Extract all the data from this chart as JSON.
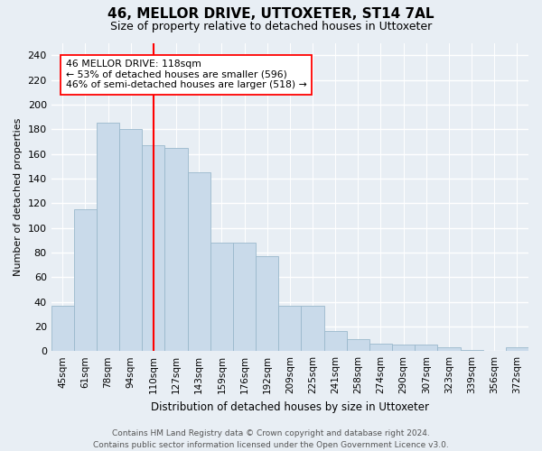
{
  "title": "46, MELLOR DRIVE, UTTOXETER, ST14 7AL",
  "subtitle": "Size of property relative to detached houses in Uttoxeter",
  "xlabel": "Distribution of detached houses by size in Uttoxeter",
  "ylabel": "Number of detached properties",
  "categories": [
    "45sqm",
    "61sqm",
    "78sqm",
    "94sqm",
    "110sqm",
    "127sqm",
    "143sqm",
    "159sqm",
    "176sqm",
    "192sqm",
    "209sqm",
    "225sqm",
    "241sqm",
    "258sqm",
    "274sqm",
    "290sqm",
    "307sqm",
    "323sqm",
    "339sqm",
    "356sqm",
    "372sqm"
  ],
  "bar_values": [
    37,
    115,
    185,
    180,
    167,
    165,
    145,
    88,
    88,
    77,
    37,
    37,
    16,
    10,
    6,
    5,
    5,
    3,
    1,
    0,
    3
  ],
  "bar_color": "#c9daea",
  "bar_edgecolor": "#9ab8cc",
  "vline_x": 4,
  "vline_color": "red",
  "annotation_text": "46 MELLOR DRIVE: 118sqm\n← 53% of detached houses are smaller (596)\n46% of semi-detached houses are larger (518) →",
  "annotation_box_color": "white",
  "annotation_box_edgecolor": "red",
  "ylim": [
    0,
    250
  ],
  "yticks": [
    0,
    20,
    40,
    60,
    80,
    100,
    120,
    140,
    160,
    180,
    200,
    220,
    240
  ],
  "footer": "Contains HM Land Registry data © Crown copyright and database right 2024.\nContains public sector information licensed under the Open Government Licence v3.0.",
  "bg_color": "#e8eef4",
  "plot_bg_color": "#e8eef4",
  "grid_color": "white",
  "title_fontsize": 11,
  "subtitle_fontsize": 9
}
